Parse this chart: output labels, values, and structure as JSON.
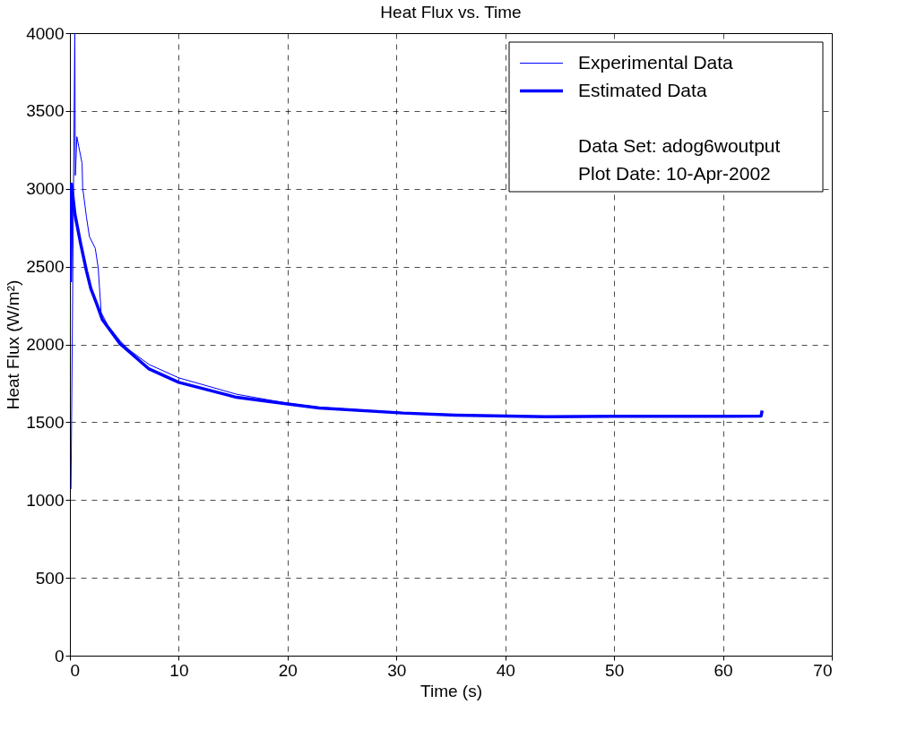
{
  "chart_data": {
    "type": "line",
    "title": "Heat Flux vs. Time",
    "xlabel": "Time (s)",
    "ylabel": "Heat Flux (W/m²)",
    "xlim": [
      0,
      70
    ],
    "xticks": [
      0,
      10,
      20,
      30,
      40,
      50,
      60,
      70
    ],
    "ylim": [
      0,
      4000
    ],
    "yticks": [
      0,
      500,
      1000,
      1500,
      2000,
      2500,
      3000,
      3500,
      4000
    ],
    "grid": true,
    "legend": "top right",
    "line_style": "solid",
    "marker": "none",
    "series": [
      {
        "name": "Experimental Data",
        "color": "#0000ff",
        "x": [
          0.1,
          0.45,
          0.5,
          0.64,
          1.12,
          1.17,
          1.52,
          1.79,
          2.33,
          2.6,
          2.65,
          2.87,
          3.5,
          4.6,
          5.4,
          7.27,
          10,
          15.3,
          20,
          22.9,
          30.6,
          35.4,
          43.7,
          50,
          60,
          63.5
        ],
        "values": [
          1070,
          4000,
          3086,
          3334,
          3162,
          3009,
          2818,
          2693,
          2617,
          2492,
          2435,
          2205,
          2120,
          2024,
          1967,
          1871,
          1785,
          1680,
          1622,
          1596,
          1562,
          1549,
          1538,
          1540,
          1540,
          1545
        ]
      },
      {
        "name": "Estimated Data",
        "color": "#0000ff",
        "x": [
          0.05,
          0.15,
          0.46,
          0.99,
          1.52,
          1.92,
          2.45,
          2.99,
          4.6,
          7.27,
          10,
          15.3,
          20,
          22.9,
          30.6,
          35.4,
          43.7,
          50,
          60,
          63.5,
          63.6
        ],
        "values": [
          2400,
          3030,
          2837,
          2646,
          2473,
          2359,
          2263,
          2158,
          2005,
          1842,
          1756,
          1660,
          1617,
          1592,
          1559,
          1546,
          1535,
          1538,
          1538,
          1540,
          1575
        ]
      }
    ],
    "annotations": [
      "Data Set:   adog6woutput",
      "Plot Date:  10-Apr-2002"
    ]
  }
}
